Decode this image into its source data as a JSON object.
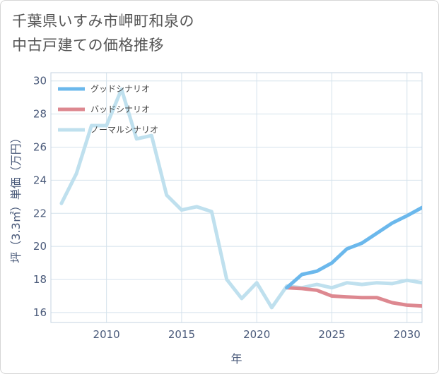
{
  "title": {
    "line1": "千葉県いすみ市岬町和泉の",
    "line2": "中古戸建ての価格推移"
  },
  "chart_data": {
    "type": "line",
    "xlabel": "年",
    "ylabel": "坪（3.3㎡）単価（万円）",
    "xlim": [
      2006.3,
      2031
    ],
    "ylim": [
      15.4,
      30.5
    ],
    "x_ticks": [
      2010,
      2015,
      2020,
      2025,
      2030
    ],
    "y_ticks": [
      16,
      18,
      20,
      22,
      24,
      26,
      28,
      30
    ],
    "grid": true,
    "legend_position": "top-left",
    "series": [
      {
        "name": "グッドシナリオ",
        "color": "#6bb8ec",
        "x": [
          2022,
          2023,
          2024,
          2025,
          2026,
          2027,
          2028,
          2029,
          2030,
          2031
        ],
        "values": [
          17.5,
          18.3,
          18.5,
          19.0,
          19.85,
          20.2,
          20.8,
          21.4,
          21.85,
          22.35
        ]
      },
      {
        "name": "バッドシナリオ",
        "color": "#dd8890",
        "x": [
          2022,
          2023,
          2024,
          2025,
          2026,
          2027,
          2028,
          2029,
          2030,
          2031
        ],
        "values": [
          17.5,
          17.45,
          17.35,
          17.0,
          16.95,
          16.9,
          16.9,
          16.6,
          16.45,
          16.4
        ]
      },
      {
        "name": "ノーマルシナリオ",
        "color": "#bfe0ee",
        "x": [
          2007,
          2008,
          2009,
          2010,
          2011,
          2012,
          2013,
          2014,
          2015,
          2016,
          2017,
          2018,
          2019,
          2020,
          2021,
          2022,
          2023,
          2024,
          2025,
          2026,
          2027,
          2028,
          2029,
          2030,
          2031
        ],
        "values": [
          22.6,
          24.4,
          27.3,
          27.3,
          29.5,
          26.5,
          26.7,
          23.1,
          22.2,
          22.4,
          22.1,
          18.0,
          16.85,
          17.8,
          16.3,
          17.6,
          17.5,
          17.7,
          17.5,
          17.8,
          17.7,
          17.8,
          17.75,
          17.95,
          17.8
        ]
      }
    ]
  }
}
